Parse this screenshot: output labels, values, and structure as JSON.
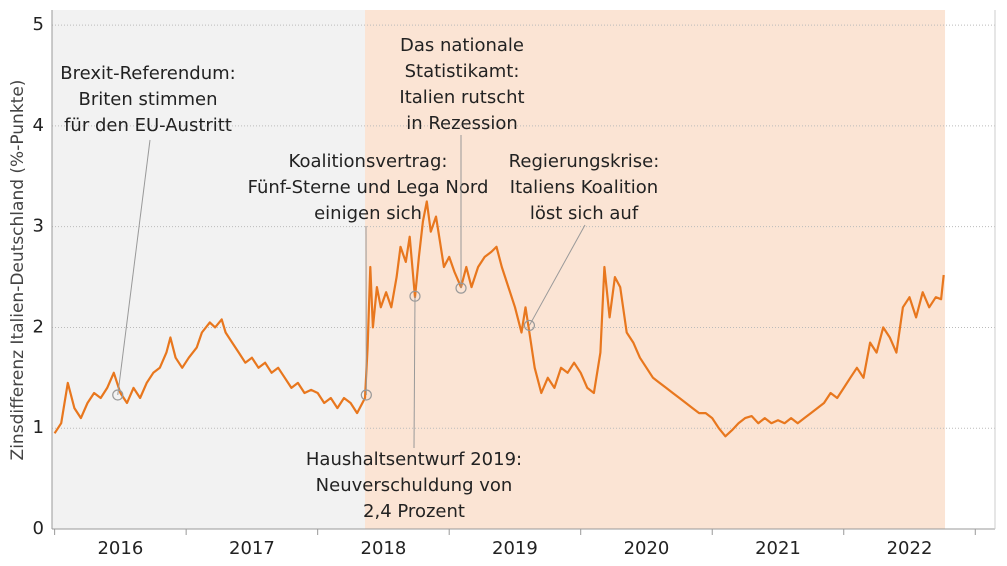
{
  "chart_data": {
    "type": "line",
    "y_label": "Zinsdifferenz Italien-Deutschland (%-Punkte)",
    "xlim": [
      2015.98,
      2023.15
    ],
    "ylim": [
      0,
      5.15
    ],
    "yticks": [
      0,
      1,
      2,
      3,
      4,
      5
    ],
    "xticks": [
      {
        "value": 2016.5,
        "label": "2016"
      },
      {
        "value": 2017.5,
        "label": "2017"
      },
      {
        "value": 2018.5,
        "label": "2018"
      },
      {
        "value": 2019.5,
        "label": "2019"
      },
      {
        "value": 2020.5,
        "label": "2020"
      },
      {
        "value": 2021.5,
        "label": "2021"
      },
      {
        "value": 2022.5,
        "label": "2022"
      }
    ],
    "x_minor_ticks": [
      2016,
      2017,
      2018,
      2019,
      2020,
      2021,
      2022,
      2023
    ],
    "grid": true,
    "shaded_regions": [
      {
        "from": 2015.98,
        "to": 2018.36,
        "color": "#f2f2f2"
      },
      {
        "from": 2018.36,
        "to": 2022.77,
        "color": "#fbe4d4"
      }
    ],
    "series": [
      {
        "color": "#e8771e",
        "x": [
          2016.0,
          2016.05,
          2016.1,
          2016.15,
          2016.2,
          2016.25,
          2016.3,
          2016.35,
          2016.4,
          2016.45,
          2016.5,
          2016.55,
          2016.6,
          2016.65,
          2016.7,
          2016.75,
          2016.8,
          2016.85,
          2016.88,
          2016.92,
          2016.97,
          2017.02,
          2017.08,
          2017.12,
          2017.18,
          2017.22,
          2017.27,
          2017.3,
          2017.35,
          2017.4,
          2017.45,
          2017.5,
          2017.55,
          2017.6,
          2017.65,
          2017.7,
          2017.75,
          2017.8,
          2017.85,
          2017.9,
          2017.95,
          2018.0,
          2018.05,
          2018.1,
          2018.15,
          2018.2,
          2018.25,
          2018.3,
          2018.36,
          2018.38,
          2018.4,
          2018.42,
          2018.45,
          2018.48,
          2018.52,
          2018.56,
          2018.6,
          2018.63,
          2018.67,
          2018.7,
          2018.74,
          2018.77,
          2018.8,
          2018.83,
          2018.86,
          2018.9,
          2018.93,
          2018.96,
          2019.0,
          2019.04,
          2019.09,
          2019.13,
          2019.17,
          2019.22,
          2019.27,
          2019.32,
          2019.36,
          2019.4,
          2019.45,
          2019.5,
          2019.55,
          2019.58,
          2019.61,
          2019.65,
          2019.7,
          2019.75,
          2019.8,
          2019.85,
          2019.9,
          2019.95,
          2020.0,
          2020.05,
          2020.1,
          2020.15,
          2020.18,
          2020.22,
          2020.26,
          2020.3,
          2020.35,
          2020.4,
          2020.45,
          2020.5,
          2020.55,
          2020.6,
          2020.65,
          2020.7,
          2020.75,
          2020.8,
          2020.85,
          2020.9,
          2020.95,
          2021.0,
          2021.05,
          2021.1,
          2021.15,
          2021.2,
          2021.25,
          2021.3,
          2021.35,
          2021.4,
          2021.45,
          2021.5,
          2021.55,
          2021.6,
          2021.65,
          2021.7,
          2021.75,
          2021.8,
          2021.85,
          2021.9,
          2021.95,
          2022.0,
          2022.05,
          2022.1,
          2022.15,
          2022.2,
          2022.25,
          2022.3,
          2022.35,
          2022.4,
          2022.45,
          2022.5,
          2022.55,
          2022.6,
          2022.65,
          2022.7,
          2022.74,
          2022.76
        ],
        "values": [
          0.95,
          1.05,
          1.45,
          1.2,
          1.1,
          1.25,
          1.35,
          1.3,
          1.4,
          1.55,
          1.35,
          1.25,
          1.4,
          1.3,
          1.45,
          1.55,
          1.6,
          1.75,
          1.9,
          1.7,
          1.6,
          1.7,
          1.8,
          1.95,
          2.05,
          2.0,
          2.08,
          1.95,
          1.85,
          1.75,
          1.65,
          1.7,
          1.6,
          1.65,
          1.55,
          1.6,
          1.5,
          1.4,
          1.45,
          1.35,
          1.38,
          1.35,
          1.25,
          1.3,
          1.2,
          1.3,
          1.25,
          1.15,
          1.3,
          1.8,
          2.6,
          2.0,
          2.4,
          2.2,
          2.35,
          2.2,
          2.5,
          2.8,
          2.65,
          2.9,
          2.3,
          2.7,
          3.05,
          3.25,
          2.95,
          3.1,
          2.85,
          2.6,
          2.7,
          2.55,
          2.4,
          2.6,
          2.4,
          2.6,
          2.7,
          2.75,
          2.8,
          2.6,
          2.4,
          2.2,
          1.95,
          2.2,
          1.95,
          1.6,
          1.35,
          1.5,
          1.4,
          1.6,
          1.55,
          1.65,
          1.55,
          1.4,
          1.35,
          1.75,
          2.6,
          2.1,
          2.5,
          2.4,
          1.95,
          1.85,
          1.7,
          1.6,
          1.5,
          1.45,
          1.4,
          1.35,
          1.3,
          1.25,
          1.2,
          1.15,
          1.15,
          1.1,
          1.0,
          0.92,
          0.98,
          1.05,
          1.1,
          1.12,
          1.05,
          1.1,
          1.05,
          1.08,
          1.05,
          1.1,
          1.05,
          1.1,
          1.15,
          1.2,
          1.25,
          1.35,
          1.3,
          1.4,
          1.5,
          1.6,
          1.5,
          1.85,
          1.75,
          2.0,
          1.9,
          1.75,
          2.2,
          2.3,
          2.1,
          2.35,
          2.2,
          2.3,
          2.28,
          2.52
        ]
      }
    ],
    "annotations": [
      {
        "lines": [
          "Brexit-Referendum:",
          "Briten stimmen",
          "für den EU-Austritt"
        ],
        "x": 2016.48,
        "y": 1.33
      },
      {
        "lines": [
          "Koalitionsvertrag:",
          "Fünf-Sterne und Lega Nord",
          "einigen sich"
        ],
        "x": 2018.37,
        "y": 1.33
      },
      {
        "lines": [
          "Haushaltsentwurf 2019:",
          "Neuverschuldung von",
          "2,4 Prozent"
        ],
        "x": 2018.74,
        "y": 2.31
      },
      {
        "lines": [
          "Das nationale",
          "Statistikamt:",
          "Italien rutscht",
          "in Rezession"
        ],
        "x": 2019.09,
        "y": 2.39
      },
      {
        "lines": [
          "Regierungskrise:",
          "Italiens Koalition",
          "löst sich auf"
        ],
        "x": 2019.61,
        "y": 2.02
      }
    ]
  }
}
